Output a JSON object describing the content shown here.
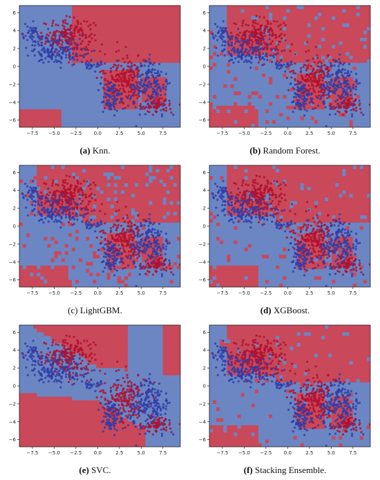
{
  "colors": {
    "red": "#c9485a",
    "blue": "#6b86c3",
    "boundary": "#f3e3b0",
    "dot_red": "#b0102f",
    "dot_blue": "#2f3da8"
  },
  "xticks": [
    -7.5,
    -5.0,
    -2.5,
    0.0,
    2.5,
    5.0,
    7.5
  ],
  "yticks": [
    6,
    4,
    2,
    0,
    -2,
    -4,
    -6
  ],
  "chart_data": [
    {
      "id": "a",
      "type": "scatter",
      "subtype": "decision-boundary",
      "caption_tag": "(a)",
      "caption_text": "Knn.",
      "xlim": [
        -9,
        9.5
      ],
      "ylim": [
        -6.8,
        6.8
      ],
      "grid": false
    },
    {
      "id": "b",
      "type": "scatter",
      "subtype": "decision-boundary",
      "caption_tag": "(b)",
      "caption_text": "Random Forest.",
      "xlim": [
        -9,
        9.5
      ],
      "ylim": [
        -6.8,
        6.8
      ],
      "grid": false
    },
    {
      "id": "c",
      "type": "scatter",
      "subtype": "decision-boundary",
      "caption_tag": "(c)",
      "caption_text": "LightGBM.",
      "xlim": [
        -9,
        9.5
      ],
      "ylim": [
        -6.8,
        6.8
      ],
      "grid": false
    },
    {
      "id": "d",
      "type": "scatter",
      "subtype": "decision-boundary",
      "caption_tag": "(d)",
      "caption_text": "XGBoost.",
      "xlim": [
        -9,
        9.5
      ],
      "ylim": [
        -6.8,
        6.8
      ],
      "grid": false
    },
    {
      "id": "e",
      "type": "scatter",
      "subtype": "decision-boundary",
      "caption_tag": "(e)",
      "caption_text": "SVC.",
      "xlim": [
        -9,
        9.5
      ],
      "ylim": [
        -6.8,
        6.8
      ],
      "grid": false
    },
    {
      "id": "f",
      "type": "scatter",
      "subtype": "decision-boundary",
      "caption_tag": "(f)",
      "caption_text": "Stacking Ensemble.",
      "xlim": [
        -9,
        9.5
      ],
      "ylim": [
        -6.8,
        6.8
      ],
      "grid": false
    }
  ]
}
